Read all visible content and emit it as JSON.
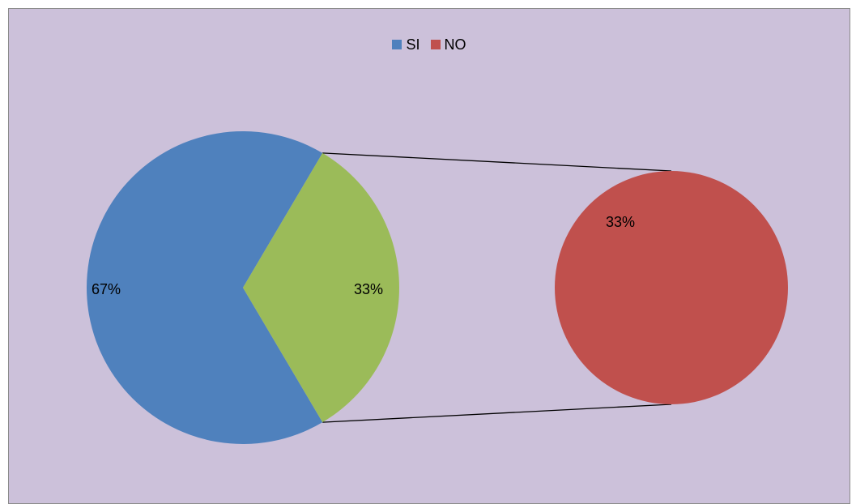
{
  "chart_data": {
    "type": "pie",
    "subtype": "pie-of-pie",
    "legend": {
      "position": "top",
      "entries": [
        {
          "label": "SI",
          "color": "#4f81bd"
        },
        {
          "label": "NO",
          "color": "#c0504d"
        }
      ]
    },
    "main_pie": {
      "slices": [
        {
          "category": "SI",
          "value": 67,
          "label": "67%",
          "color": "#4f81bd"
        },
        {
          "category": "other",
          "value": 33,
          "label": "33%",
          "color": "#9bbb59"
        }
      ]
    },
    "secondary_pie": {
      "slices": [
        {
          "category": "NO",
          "value": 33,
          "label": "33%",
          "color": "#c0504d"
        }
      ]
    },
    "plot_background": "#ccc1da",
    "connector_color": "#000000"
  }
}
